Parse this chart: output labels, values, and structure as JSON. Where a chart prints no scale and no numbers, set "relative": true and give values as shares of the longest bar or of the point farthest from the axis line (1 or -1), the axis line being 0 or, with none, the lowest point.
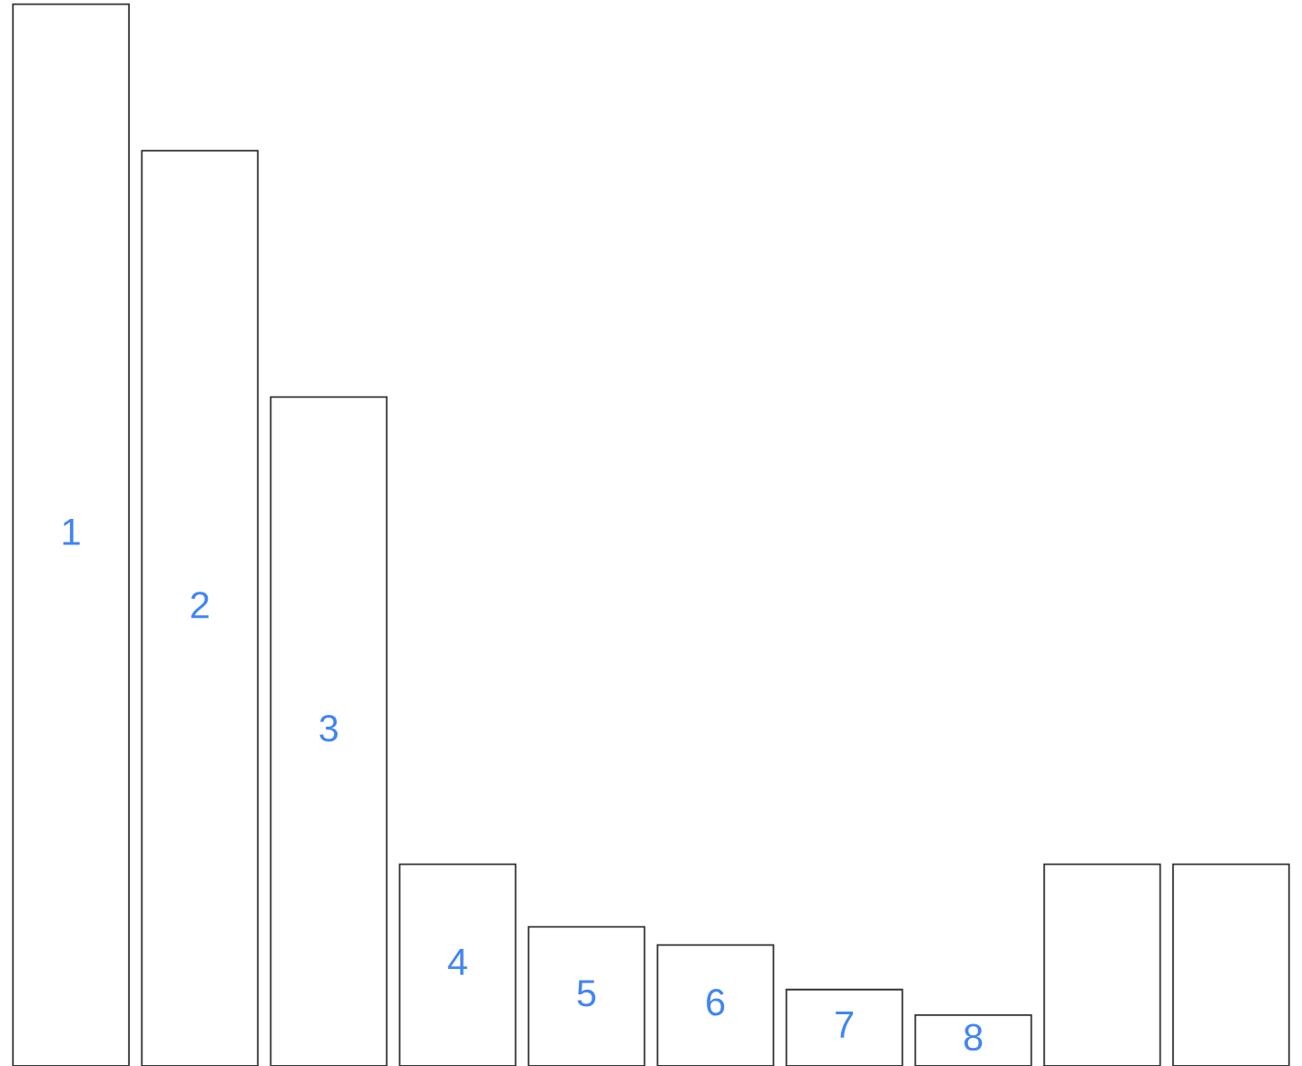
{
  "chart_data": {
    "type": "bar",
    "relative": true,
    "categories": [
      "1",
      "2",
      "3",
      "4",
      "5",
      "6",
      "7",
      "8",
      null,
      null
    ],
    "values": [
      1,
      0.862,
      0.63,
      0.19,
      0.131,
      0.114,
      0.072,
      0.048,
      0.19,
      0.19
    ],
    "color": "#ffffff"
  }
}
